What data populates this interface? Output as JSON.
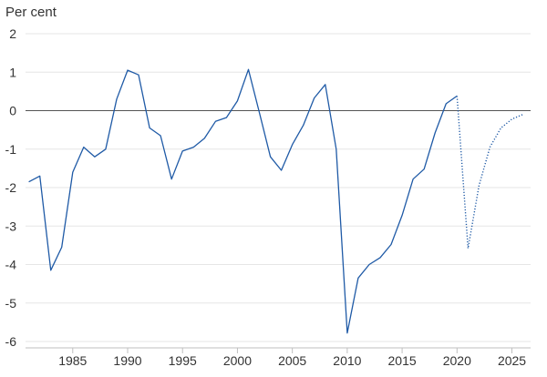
{
  "chart_data": {
    "type": "line",
    "title": "",
    "xlabel": "",
    "ylabel": "Per cent",
    "xlim": [
      1980.7,
      2026.7
    ],
    "ylim": [
      -6,
      2
    ],
    "yticks": [
      2,
      1,
      0,
      -1,
      -2,
      -3,
      -4,
      -5,
      -6
    ],
    "xticks": [
      1985,
      1990,
      1995,
      2000,
      2005,
      2010,
      2015,
      2020,
      2025
    ],
    "grid": true,
    "legend": "none",
    "series": [
      {
        "style": "solid",
        "color": "#1f5aa6",
        "points": [
          [
            1981,
            -1.85
          ],
          [
            1982,
            -1.7
          ],
          [
            1983,
            -4.15
          ],
          [
            1984,
            -3.55
          ],
          [
            1985,
            -1.6
          ],
          [
            1986,
            -0.95
          ],
          [
            1987,
            -1.2
          ],
          [
            1988,
            -1.0
          ],
          [
            1989,
            0.3
          ],
          [
            1990,
            1.05
          ],
          [
            1991,
            0.93
          ],
          [
            1992,
            -0.45
          ],
          [
            1993,
            -0.65
          ],
          [
            1994,
            -1.78
          ],
          [
            1995,
            -1.05
          ],
          [
            1996,
            -0.95
          ],
          [
            1997,
            -0.72
          ],
          [
            1998,
            -0.28
          ],
          [
            1999,
            -0.18
          ],
          [
            2000,
            0.25
          ],
          [
            2001,
            1.07
          ],
          [
            2002,
            -0.05
          ],
          [
            2003,
            -1.2
          ],
          [
            2004,
            -1.55
          ],
          [
            2005,
            -0.88
          ],
          [
            2006,
            -0.38
          ],
          [
            2007,
            0.33
          ],
          [
            2008,
            0.68
          ],
          [
            2009,
            -1.0
          ],
          [
            2010,
            -5.78
          ],
          [
            2011,
            -4.35
          ],
          [
            2012,
            -4.0
          ],
          [
            2013,
            -3.82
          ],
          [
            2014,
            -3.48
          ],
          [
            2015,
            -2.72
          ],
          [
            2016,
            -1.78
          ],
          [
            2017,
            -1.52
          ],
          [
            2018,
            -0.58
          ],
          [
            2019,
            0.18
          ],
          [
            2020,
            0.38
          ]
        ]
      },
      {
        "style": "dotted",
        "color": "#1f5aa6",
        "points": [
          [
            2020,
            0.38
          ],
          [
            2021,
            -3.58
          ],
          [
            2022,
            -1.95
          ],
          [
            2023,
            -0.95
          ],
          [
            2024,
            -0.45
          ],
          [
            2025,
            -0.22
          ],
          [
            2026,
            -0.1
          ]
        ]
      }
    ]
  }
}
